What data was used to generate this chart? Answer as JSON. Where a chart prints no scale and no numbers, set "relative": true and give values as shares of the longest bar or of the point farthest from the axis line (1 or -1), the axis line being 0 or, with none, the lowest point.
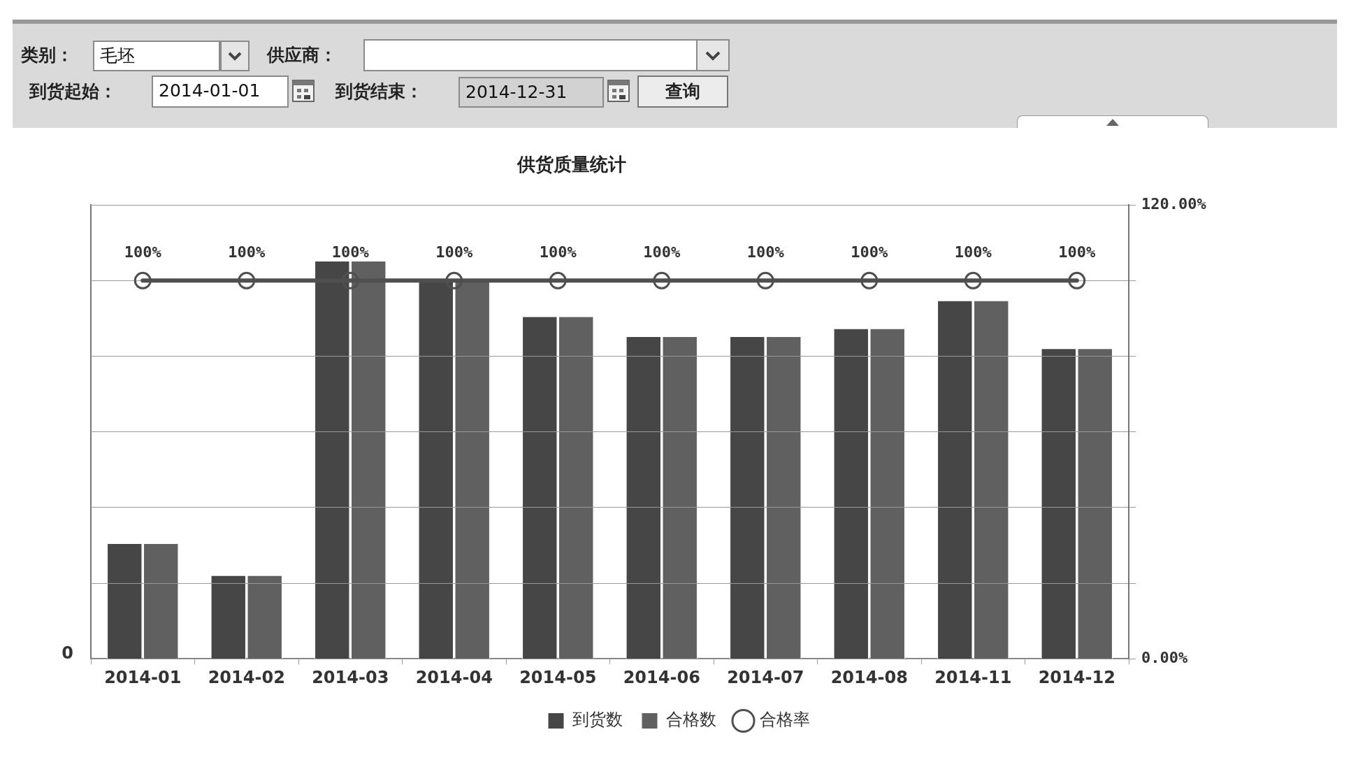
{
  "chart_data": [
    {
      "type": "bar",
      "title": "供货质量统计",
      "categories": [
        "2014-01",
        "2014-02",
        "2014-03",
        "2014-04",
        "2014-05",
        "2014-06",
        "2014-07",
        "2014-08",
        "2014-11",
        "2014-12"
      ],
      "series": [
        {
          "name": "到货数",
          "color": "#464646",
          "values": [
            0.29,
            0.21,
            1,
            0.95,
            0.86,
            0.81,
            0.81,
            0.83,
            0.9,
            0.78
          ]
        },
        {
          "name": "合格数",
          "color": "#606060",
          "values": [
            0.29,
            0.21,
            1,
            0.95,
            0.86,
            0.81,
            0.81,
            0.83,
            0.9,
            0.78
          ]
        }
      ],
      "relative": true,
      "legend": "bottom",
      "annotations": [
        "类别：",
        "毛坯",
        "供应商：",
        "到货起始：",
        "2014-01-01",
        "到货结束：",
        "2014-12-31",
        "查询",
        "0"
      ]
    },
    {
      "type": "line",
      "categories": [
        "2014-01",
        "2014-02",
        "2014-03",
        "2014-04",
        "2014-05",
        "2014-06",
        "2014-07",
        "2014-08",
        "2014-11",
        "2014-12"
      ],
      "series": [
        {
          "name": "合格率",
          "axis": "y2",
          "color": "#4f4f4f",
          "values": [
            100,
            100,
            100,
            100,
            100,
            100,
            100,
            100,
            100,
            100
          ],
          "value_labels": [
            "100%",
            "100%",
            "100%",
            "100%",
            "100%",
            "100%",
            "100%",
            "100%",
            "100%",
            "100%"
          ]
        }
      ],
      "y2lim": [
        0,
        120
      ],
      "y2ticks": [
        {
          "value": 0,
          "label": "0.00%"
        },
        {
          "value": 20,
          "label": null
        },
        {
          "value": 40,
          "label": null
        },
        {
          "value": 60,
          "label": null
        },
        {
          "value": 80,
          "label": null
        },
        {
          "value": 100,
          "label": null
        },
        {
          "value": 120,
          "label": "120.00%"
        }
      ],
      "grid": "y",
      "legend": "bottom",
      "marker": "circle",
      "tick_labels": "y"
    }
  ]
}
